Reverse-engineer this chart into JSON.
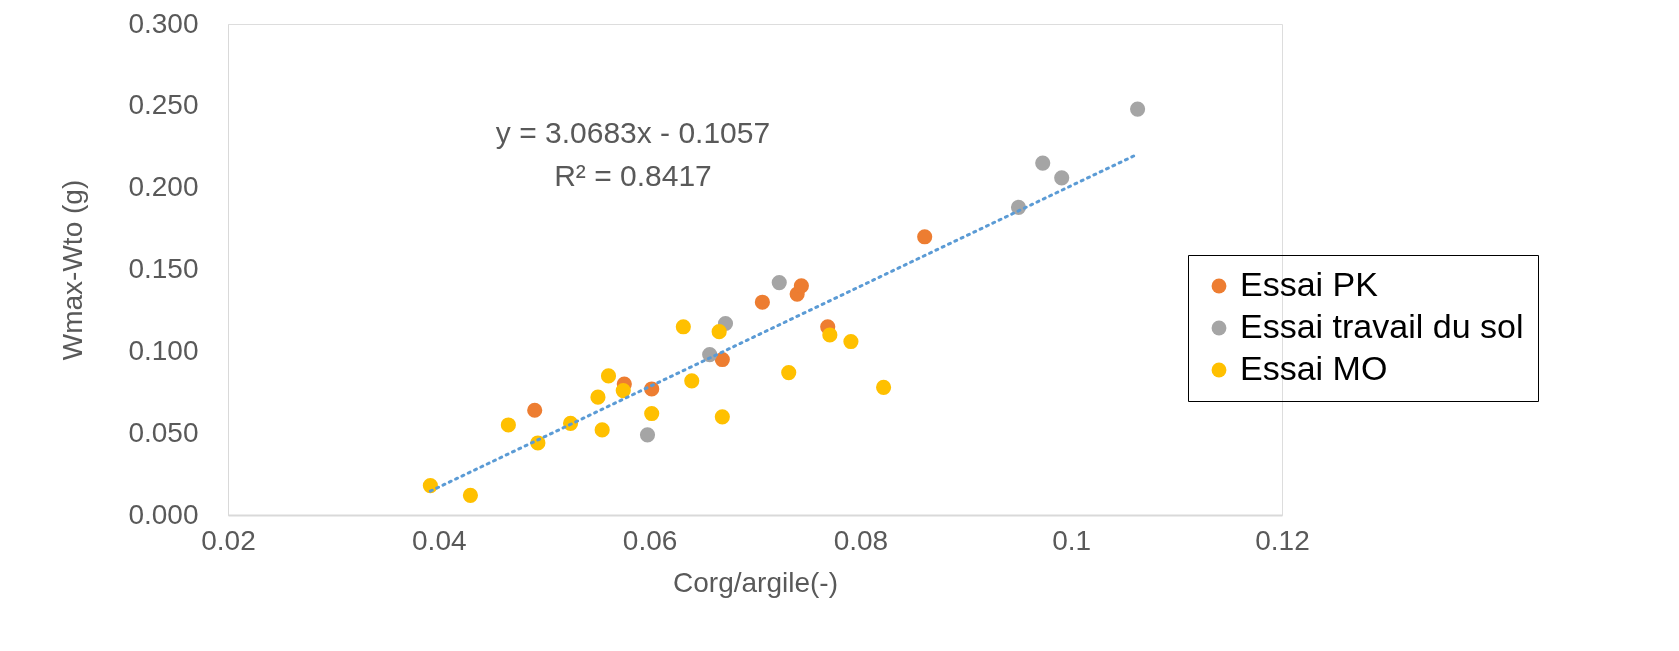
{
  "chart_data": {
    "type": "scatter",
    "xlabel": "Corg/argile(-)",
    "ylabel": "Wmax-Wto (g)",
    "annotations": [
      "y = 3.0683x - 0.1057",
      "R² = 0.8417"
    ],
    "series": [
      {
        "name": "Essai PK",
        "color": "#ed7d31",
        "x": [
          0.0491,
          0.0576,
          0.0602,
          0.0669,
          0.0707,
          0.074,
          0.0744,
          0.0769,
          0.0861
        ],
        "values": [
          0.064,
          0.08,
          0.077,
          0.095,
          0.13,
          0.135,
          0.14,
          0.115,
          0.17
        ]
      },
      {
        "name": "Essai travail du sol",
        "color": "#a5a5a5",
        "x": [
          0.0598,
          0.0657,
          0.0672,
          0.0723,
          0.095,
          0.0973,
          0.0991,
          0.1063
        ],
        "values": [
          0.049,
          0.098,
          0.117,
          0.142,
          0.188,
          0.215,
          0.206,
          0.248
        ]
      },
      {
        "name": "Essai MO",
        "color": "#ffc000",
        "x": [
          0.0392,
          0.043,
          0.0466,
          0.0494,
          0.0525,
          0.0551,
          0.0555,
          0.0561,
          0.0575,
          0.0602,
          0.0632,
          0.064,
          0.0666,
          0.0669,
          0.0732,
          0.0771,
          0.0791,
          0.0822
        ],
        "values": [
          0.018,
          0.012,
          0.055,
          0.044,
          0.056,
          0.072,
          0.052,
          0.085,
          0.076,
          0.062,
          0.115,
          0.082,
          0.112,
          0.06,
          0.087,
          0.11,
          0.106,
          0.078
        ]
      },
      {
        "type": "line",
        "color": "#5b9bd5",
        "line_style": "dotted",
        "marker": "none",
        "x": [
          0.0392,
          0.1063
        ],
        "values": [
          0.0146,
          0.2205
        ]
      }
    ],
    "xlim": [
      0.02,
      0.12
    ],
    "xticks": [
      0.02,
      0.04,
      0.06,
      0.08,
      0.1,
      0.12
    ],
    "ylim": [
      0,
      0.3
    ],
    "yticks": [
      {
        "value": 0,
        "label": "0.000"
      },
      {
        "value": 0.05,
        "label": "0.050"
      },
      {
        "value": 0.1,
        "label": "0.100"
      },
      {
        "value": 0.15,
        "label": "0.150"
      },
      {
        "value": 0.2,
        "label": "0.200"
      },
      {
        "value": 0.25,
        "label": "0.250"
      },
      {
        "value": 0.3,
        "label": "0.300"
      }
    ],
    "grid": false,
    "legend": "right",
    "marker": "circle"
  }
}
